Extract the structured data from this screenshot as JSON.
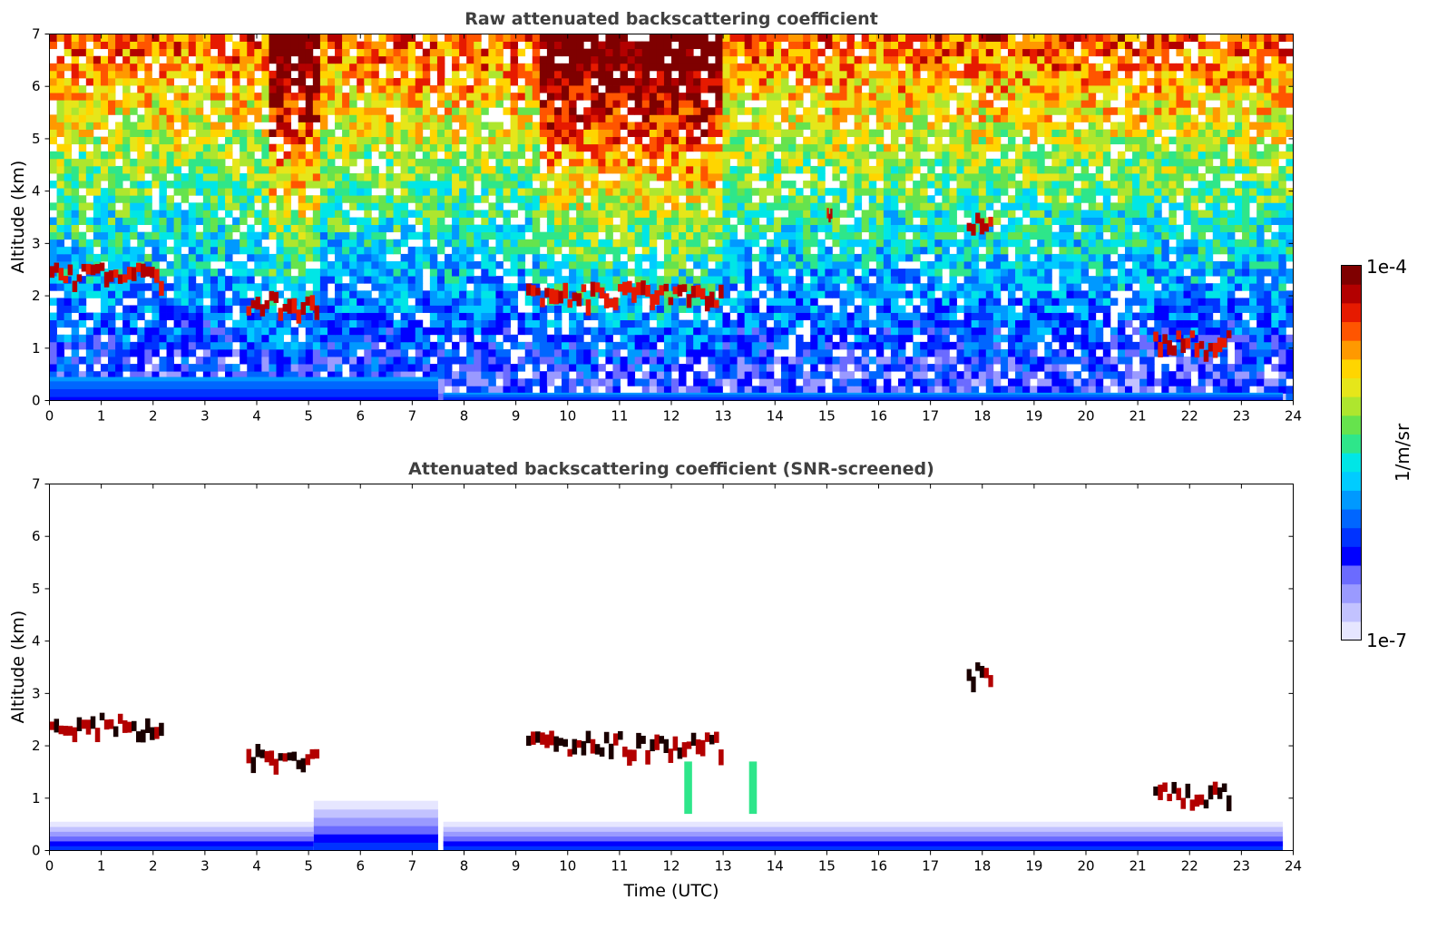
{
  "chart_data": [
    {
      "type": "heatmap",
      "title": "Raw attenuated backscattering coefficient",
      "xlabel": "",
      "ylabel": "Altitude (km)",
      "xlim": [
        0,
        24
      ],
      "ylim": [
        0,
        7
      ],
      "x_ticks": [
        0,
        1,
        2,
        3,
        4,
        5,
        6,
        7,
        8,
        9,
        10,
        11,
        12,
        13,
        14,
        15,
        16,
        17,
        18,
        19,
        20,
        21,
        22,
        23,
        24
      ],
      "y_ticks": [
        0,
        1,
        2,
        3,
        4,
        5,
        6,
        7
      ],
      "grid": false,
      "scale": "log",
      "colorbar": {
        "min_label": "1e-7",
        "max_label": "1e-4",
        "label": "1/m/sr"
      },
      "features": [
        {
          "kind": "boundary_layer",
          "x_range": [
            0,
            7.5
          ],
          "top_km": 0.45
        },
        {
          "kind": "boundary_layer",
          "x_range": [
            7.6,
            23.8
          ],
          "top_km": 0.15
        },
        {
          "kind": "cloud_layer",
          "x_range": [
            0,
            2.2
          ],
          "altitude_km": 2.35
        },
        {
          "kind": "cloud_layer",
          "x_range": [
            3.8,
            5.2
          ],
          "altitude_km": 1.8
        },
        {
          "kind": "cloud_layer",
          "x_range": [
            9.2,
            13.0
          ],
          "altitude_km": 2.0
        },
        {
          "kind": "cloud_layer",
          "x_range": [
            15.0,
            15.1
          ],
          "altitude_km": 3.45
        },
        {
          "kind": "cloud_layer",
          "x_range": [
            17.7,
            18.2
          ],
          "altitude_km": 3.35
        },
        {
          "kind": "cloud_layer",
          "x_range": [
            21.3,
            22.8
          ],
          "altitude_km": 1.05
        }
      ]
    },
    {
      "type": "heatmap",
      "title": "Attenuated backscattering coefficient (SNR-screened)",
      "xlabel": "Time (UTC)",
      "ylabel": "Altitude (km)",
      "xlim": [
        0,
        24
      ],
      "ylim": [
        0,
        7
      ],
      "x_ticks": [
        0,
        1,
        2,
        3,
        4,
        5,
        6,
        7,
        8,
        9,
        10,
        11,
        12,
        13,
        14,
        15,
        16,
        17,
        18,
        19,
        20,
        21,
        22,
        23,
        24
      ],
      "y_ticks": [
        0,
        1,
        2,
        3,
        4,
        5,
        6,
        7
      ],
      "grid": false,
      "scale": "log",
      "colorbar": {
        "min_label": "1e-7",
        "max_label": "1e-4",
        "label": "1/m/sr"
      },
      "features": [
        {
          "kind": "boundary_layer",
          "x_range": [
            0,
            5.1
          ],
          "top_km": 0.55
        },
        {
          "kind": "boundary_layer",
          "x_range": [
            5.1,
            7.5
          ],
          "top_km": 0.95
        },
        {
          "kind": "boundary_layer",
          "x_range": [
            7.6,
            23.8
          ],
          "top_km": 0.55
        },
        {
          "kind": "cloud_layer",
          "x_range": [
            0,
            2.2
          ],
          "altitude_km": 2.35
        },
        {
          "kind": "cloud_layer",
          "x_range": [
            3.8,
            5.2
          ],
          "altitude_km": 1.8
        },
        {
          "kind": "cloud_layer",
          "x_range": [
            9.2,
            13.0
          ],
          "altitude_km": 2.0
        },
        {
          "kind": "cloud_layer",
          "x_range": [
            17.7,
            18.2
          ],
          "altitude_km": 3.35
        },
        {
          "kind": "cloud_layer",
          "x_range": [
            21.3,
            22.8
          ],
          "altitude_km": 1.05
        },
        {
          "kind": "aerosol_plume",
          "x_range": [
            12.25,
            12.4
          ],
          "altitude_km": 1.2
        },
        {
          "kind": "aerosol_plume",
          "x_range": [
            13.5,
            13.65
          ],
          "altitude_km": 1.2
        }
      ]
    }
  ],
  "colorbar": {
    "max_label": "1e-4",
    "min_label": "1e-7",
    "label": "1/m/sr",
    "colors": [
      "#e6e6ff",
      "#c2c2ff",
      "#9a9aff",
      "#6b6bff",
      "#0000ff",
      "#0033ff",
      "#0066ff",
      "#0099ff",
      "#00ccff",
      "#00e6e6",
      "#2ee68a",
      "#66e34d",
      "#aee62e",
      "#e6e61a",
      "#ffd500",
      "#ff9900",
      "#ff5500",
      "#e61a00",
      "#b30000",
      "#7f0000"
    ]
  }
}
